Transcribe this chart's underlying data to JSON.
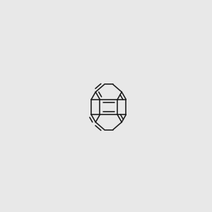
{
  "bg_color": "#e8e8e8",
  "line_color": "#1a1a1a",
  "lw": 1.15,
  "figsize": [
    3.0,
    3.0
  ],
  "dpi": 100
}
